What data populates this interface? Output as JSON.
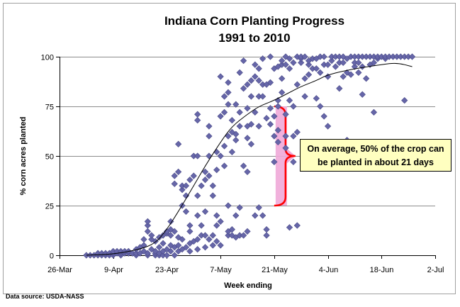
{
  "chart_data": {
    "type": "scatter",
    "title": "Indiana Corn Planting Progress",
    "subtitle": "1991 to 2010",
    "xlabel": "Week ending",
    "ylabel": "% corn acres planted",
    "source": "Data source: USDA-NASS",
    "annotation": "On average, 50% of the crop can be planted in about 21 days",
    "annotation_lines": [
      "On average, 50% of the crop can",
      "be planted in about 21 days"
    ],
    "x_ticks": [
      "26-Mar",
      "9-Apr",
      "23-Apr",
      "7-May",
      "21-May",
      "4-Jun",
      "18-Jun",
      "2-Jul"
    ],
    "x_tick_days": [
      0,
      14,
      28,
      42,
      56,
      70,
      84,
      98
    ],
    "y_ticks": [
      "0",
      "25",
      "50",
      "75",
      "100"
    ],
    "y_tick_values": [
      0,
      25,
      50,
      75,
      100
    ],
    "xlim": [
      0,
      98
    ],
    "ylim": [
      0,
      100
    ],
    "x_axis_origin": "26-Mar",
    "grid": "horizontal",
    "legend": "none",
    "colors": {
      "points": "#6666a8",
      "point_edge": "#4a4a88",
      "trend": "#000000",
      "bracket": "#ff0000",
      "bracket_fill": "#f0a8d8",
      "annotation_bg": "#ffffc0",
      "gridline": "#8c8c8c"
    },
    "bracket_range": [
      25,
      75
    ],
    "bracket_x": 56,
    "series": [
      {
        "kind": "scatter",
        "points": [
          [
            7,
            0
          ],
          [
            8,
            0
          ],
          [
            9,
            0
          ],
          [
            10,
            0
          ],
          [
            10,
            1
          ],
          [
            11,
            0
          ],
          [
            11,
            1
          ],
          [
            12,
            0
          ],
          [
            12,
            1
          ],
          [
            13,
            0
          ],
          [
            13,
            1
          ],
          [
            14,
            0
          ],
          [
            14,
            1
          ],
          [
            14,
            2
          ],
          [
            15,
            1
          ],
          [
            15,
            2
          ],
          [
            16,
            0
          ],
          [
            16,
            1
          ],
          [
            16,
            2
          ],
          [
            17,
            1
          ],
          [
            17,
            2
          ],
          [
            18,
            1
          ],
          [
            18,
            2
          ],
          [
            19,
            1
          ],
          [
            20,
            0
          ],
          [
            20,
            1
          ],
          [
            20,
            3
          ],
          [
            21,
            1
          ],
          [
            21,
            4
          ],
          [
            22,
            2
          ],
          [
            22,
            5
          ],
          [
            22,
            8
          ],
          [
            23,
            0
          ],
          [
            23,
            1
          ],
          [
            23,
            12
          ],
          [
            23,
            15
          ],
          [
            23,
            17
          ],
          [
            24,
            3
          ],
          [
            24,
            8
          ],
          [
            24,
            10
          ],
          [
            25,
            0
          ],
          [
            25,
            1
          ],
          [
            25,
            2
          ],
          [
            25,
            7
          ],
          [
            26,
            0
          ],
          [
            26,
            1
          ],
          [
            26,
            4
          ],
          [
            26,
            9
          ],
          [
            27,
            0
          ],
          [
            27,
            2
          ],
          [
            27,
            6
          ],
          [
            27,
            10
          ],
          [
            28,
            0
          ],
          [
            28,
            3
          ],
          [
            28,
            11
          ],
          [
            28,
            12
          ],
          [
            29,
            2
          ],
          [
            29,
            5
          ],
          [
            29,
            10
          ],
          [
            29,
            13
          ],
          [
            29,
            17
          ],
          [
            30,
            0
          ],
          [
            30,
            4
          ],
          [
            30,
            12
          ],
          [
            30,
            36
          ],
          [
            30,
            40
          ],
          [
            31,
            2
          ],
          [
            31,
            5
          ],
          [
            31,
            9
          ],
          [
            31,
            42
          ],
          [
            31,
            56
          ],
          [
            32,
            3
          ],
          [
            32,
            8
          ],
          [
            32,
            25
          ],
          [
            32,
            33
          ],
          [
            32,
            35
          ],
          [
            33,
            4
          ],
          [
            33,
            22
          ],
          [
            33,
            30
          ],
          [
            33,
            35
          ],
          [
            34,
            2
          ],
          [
            34,
            6
          ],
          [
            34,
            12
          ],
          [
            34,
            15
          ],
          [
            34,
            38
          ],
          [
            35,
            7
          ],
          [
            35,
            40
          ],
          [
            35,
            50
          ],
          [
            36,
            3
          ],
          [
            36,
            8
          ],
          [
            36,
            20
          ],
          [
            36,
            30
          ],
          [
            36,
            50
          ],
          [
            36,
            68
          ],
          [
            36,
            71
          ],
          [
            37,
            10
          ],
          [
            37,
            15
          ],
          [
            37,
            35
          ],
          [
            38,
            4
          ],
          [
            38,
            10
          ],
          [
            38,
            22
          ],
          [
            38,
            38
          ],
          [
            38,
            42
          ],
          [
            39,
            8
          ],
          [
            39,
            40
          ],
          [
            39,
            50
          ],
          [
            39,
            60
          ],
          [
            39,
            65
          ],
          [
            40,
            5
          ],
          [
            40,
            10
          ],
          [
            40,
            30
          ],
          [
            40,
            35
          ],
          [
            41,
            7
          ],
          [
            41,
            15
          ],
          [
            41,
            20
          ],
          [
            41,
            43
          ],
          [
            41,
            52
          ],
          [
            42,
            5
          ],
          [
            42,
            17
          ],
          [
            42,
            50
          ],
          [
            42,
            70
          ],
          [
            42,
            90
          ],
          [
            43,
            45
          ],
          [
            43,
            55
          ],
          [
            43,
            72
          ],
          [
            43,
            80
          ],
          [
            44,
            10
          ],
          [
            44,
            12
          ],
          [
            44,
            25
          ],
          [
            44,
            60
          ],
          [
            44,
            76
          ],
          [
            44,
            82
          ],
          [
            44,
            87
          ],
          [
            45,
            10
          ],
          [
            45,
            13
          ],
          [
            45,
            52
          ],
          [
            45,
            62
          ],
          [
            45,
            68
          ],
          [
            46,
            9
          ],
          [
            46,
            20
          ],
          [
            46,
            58
          ],
          [
            46,
            61
          ],
          [
            46,
            76
          ],
          [
            47,
            10
          ],
          [
            47,
            24
          ],
          [
            47,
            65
          ],
          [
            47,
            72
          ],
          [
            47,
            92
          ],
          [
            48,
            10
          ],
          [
            48,
            45
          ],
          [
            48,
            84
          ],
          [
            48,
            98
          ],
          [
            49,
            12
          ],
          [
            49,
            42
          ],
          [
            49,
            59
          ],
          [
            49,
            65
          ],
          [
            49,
            74
          ],
          [
            49,
            86
          ],
          [
            50,
            56
          ],
          [
            50,
            66
          ],
          [
            50,
            80
          ],
          [
            50,
            88
          ],
          [
            51,
            20
          ],
          [
            51,
            72
          ],
          [
            51,
            90
          ],
          [
            51,
            96
          ],
          [
            52,
            24
          ],
          [
            52,
            65
          ],
          [
            52,
            80
          ],
          [
            52,
            88
          ],
          [
            52,
            94
          ],
          [
            53,
            20
          ],
          [
            53,
            80
          ],
          [
            53,
            86
          ],
          [
            53,
            99
          ],
          [
            54,
            10
          ],
          [
            54,
            13
          ],
          [
            54,
            69
          ],
          [
            54,
            86
          ],
          [
            55,
            66
          ],
          [
            55,
            74
          ],
          [
            55,
            87
          ],
          [
            55,
            100
          ],
          [
            56,
            47
          ],
          [
            56,
            60
          ],
          [
            56,
            70
          ],
          [
            56,
            94
          ],
          [
            57,
            57
          ],
          [
            57,
            63
          ],
          [
            57,
            75
          ],
          [
            57,
            78
          ],
          [
            57,
            95
          ],
          [
            58,
            82
          ],
          [
            58,
            89
          ],
          [
            58,
            96
          ],
          [
            58,
            98
          ],
          [
            59,
            54
          ],
          [
            59,
            60
          ],
          [
            59,
            71
          ],
          [
            59,
            96
          ],
          [
            59,
            100
          ],
          [
            60,
            14
          ],
          [
            60,
            78
          ],
          [
            60,
            94
          ],
          [
            60,
            99
          ],
          [
            61,
            47
          ],
          [
            61,
            60
          ],
          [
            61,
            75
          ],
          [
            61,
            97
          ],
          [
            62,
            15
          ],
          [
            62,
            62
          ],
          [
            62,
            86
          ],
          [
            62,
            100
          ],
          [
            63,
            97
          ],
          [
            63,
            99
          ],
          [
            63,
            100
          ],
          [
            64,
            80
          ],
          [
            64,
            89
          ],
          [
            64,
            100
          ],
          [
            65,
            91
          ],
          [
            65,
            96
          ],
          [
            65,
            98
          ],
          [
            66,
            94
          ],
          [
            66,
            99
          ],
          [
            67,
            79
          ],
          [
            67,
            94
          ],
          [
            67,
            99
          ],
          [
            68,
            75
          ],
          [
            68,
            92
          ],
          [
            68,
            100
          ],
          [
            69,
            70
          ],
          [
            69,
            96
          ],
          [
            69,
            100
          ],
          [
            70,
            65
          ],
          [
            70,
            90
          ],
          [
            70,
            96
          ],
          [
            71,
            98
          ],
          [
            71,
            100
          ],
          [
            72,
            95
          ],
          [
            72,
            100
          ],
          [
            73,
            84
          ],
          [
            73,
            97
          ],
          [
            73,
            100
          ],
          [
            74,
            90
          ],
          [
            74,
            97
          ],
          [
            74,
            100
          ],
          [
            75,
            58
          ],
          [
            75,
            92
          ],
          [
            75,
            99
          ],
          [
            76,
            91
          ],
          [
            76,
            100
          ],
          [
            77,
            95
          ],
          [
            77,
            97
          ],
          [
            77,
            100
          ],
          [
            78,
            92
          ],
          [
            78,
            97
          ],
          [
            78,
            100
          ],
          [
            79,
            81
          ],
          [
            79,
            95
          ],
          [
            79,
            100
          ],
          [
            80,
            89
          ],
          [
            80,
            100
          ],
          [
            81,
            96
          ],
          [
            81,
            100
          ],
          [
            82,
            72
          ],
          [
            82,
            97
          ],
          [
            82,
            100
          ],
          [
            83,
            99
          ],
          [
            83,
            100
          ],
          [
            84,
            100
          ],
          [
            85,
            99
          ],
          [
            85,
            100
          ],
          [
            86,
            100
          ],
          [
            87,
            100
          ],
          [
            88,
            100
          ],
          [
            89,
            100
          ],
          [
            90,
            78
          ],
          [
            90,
            100
          ],
          [
            91,
            100
          ],
          [
            92,
            100
          ]
        ]
      },
      {
        "kind": "trendline",
        "points": [
          [
            7,
            0
          ],
          [
            14,
            0.5
          ],
          [
            21,
            3
          ],
          [
            25,
            6
          ],
          [
            28,
            13
          ],
          [
            31,
            22
          ],
          [
            35,
            35
          ],
          [
            38,
            45
          ],
          [
            42,
            57
          ],
          [
            45,
            65
          ],
          [
            49,
            71
          ],
          [
            52,
            75
          ],
          [
            56,
            78
          ],
          [
            60,
            82
          ],
          [
            63,
            85
          ],
          [
            67,
            88
          ],
          [
            70,
            91
          ],
          [
            77,
            94
          ],
          [
            84,
            96
          ],
          [
            88,
            97
          ],
          [
            92,
            95
          ]
        ]
      }
    ]
  }
}
